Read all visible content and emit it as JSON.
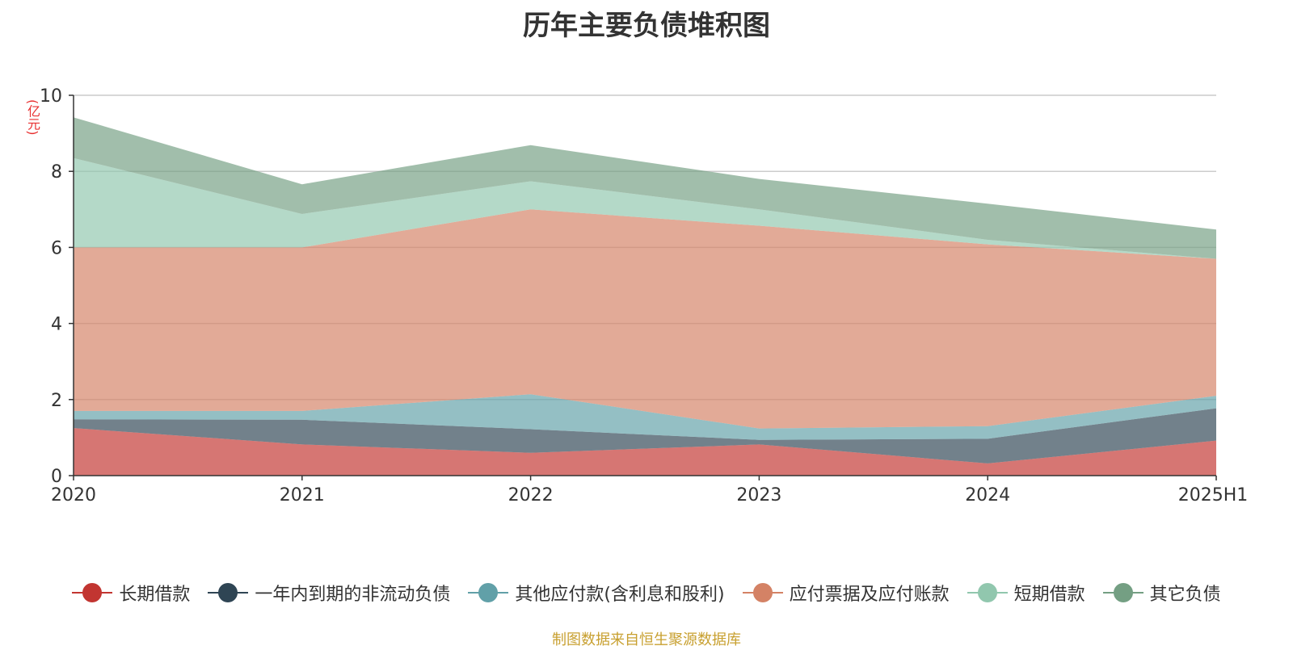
{
  "chart_data": {
    "type": "area",
    "stacked": true,
    "title": "历年主要负债堆积图",
    "ylabel": "(亿元)",
    "xlabel": "",
    "categories": [
      "2020",
      "2021",
      "2022",
      "2023",
      "2024",
      "2025H1"
    ],
    "ylim": [
      0,
      10
    ],
    "yticks": [
      0,
      2,
      4,
      6,
      8,
      10
    ],
    "grid": true,
    "legend_position": "bottom",
    "series": [
      {
        "name": "长期借款",
        "color": "#c23531",
        "values": [
          1.25,
          0.82,
          0.6,
          0.82,
          0.32,
          0.92
        ]
      },
      {
        "name": "一年内到期的非流动负债",
        "color": "#2f4554",
        "values": [
          0.23,
          0.65,
          0.62,
          0.12,
          0.65,
          0.85
        ]
      },
      {
        "name": "其他应付款(含利息和股利)",
        "color": "#61a0a8",
        "values": [
          0.22,
          0.23,
          0.92,
          0.3,
          0.33,
          0.33
        ]
      },
      {
        "name": "应付票据及应付账款",
        "color": "#d48265",
        "values": [
          4.3,
          4.3,
          4.86,
          5.33,
          4.78,
          3.6
        ]
      },
      {
        "name": "短期借款",
        "color": "#91c7ae",
        "values": [
          2.35,
          0.88,
          0.74,
          0.43,
          0.12,
          0.0
        ]
      },
      {
        "name": "其它负债",
        "color": "#749f83",
        "values": [
          1.07,
          0.78,
          0.95,
          0.8,
          0.95,
          0.77
        ]
      }
    ]
  },
  "source_text": "制图数据来自恒生聚源数据库"
}
